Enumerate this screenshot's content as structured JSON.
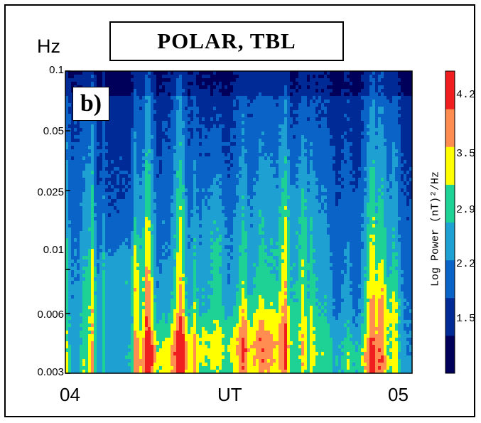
{
  "title": "POLAR, TBL",
  "panel_label": "b)",
  "y_unit": "Hz",
  "chart_data": {
    "type": "heatmap",
    "title": "POLAR, TBL",
    "xlabel": "UT",
    "ylabel": "Hz",
    "x_tick_labels": [
      "04",
      "UT",
      "05"
    ],
    "y_scale": "log",
    "ylim": [
      0.003,
      0.1
    ],
    "y_ticks": [
      0.1,
      0.05,
      0.025,
      0.01,
      0.006,
      0.003
    ],
    "y_tick_labels": [
      "0.1",
      "0.05",
      "0.025",
      "0.01",
      "0.006",
      "0.003"
    ],
    "colorbar": {
      "label": "Log Power (nT)²/Hz",
      "tick_labels": [
        "4.2",
        "3.5",
        "2.9",
        "2.2",
        "1.5"
      ],
      "levels": [
        "#00005a",
        "#002a96",
        "#0a64c8",
        "#1ea0d2",
        "#1ed296",
        "#ffff00",
        "#ff8c50",
        "#f01e1e"
      ]
    }
  },
  "colors": {
    "dark_blue": "#00005a",
    "blue": "#0a64c8",
    "cyan": "#1ea0d2",
    "green": "#1ed296",
    "yellow": "#ffff00",
    "orange": "#ff8c50",
    "red": "#f01e1e"
  }
}
